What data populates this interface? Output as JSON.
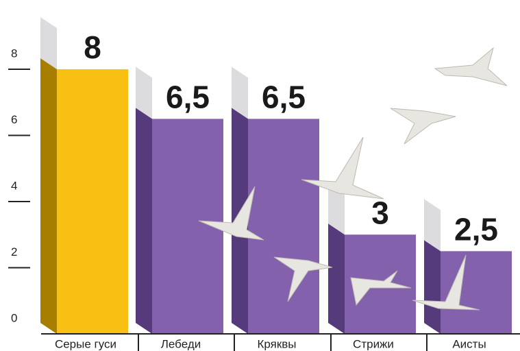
{
  "chart_data": {
    "type": "bar",
    "categories": [
      "Серые гуси",
      "Лебеди",
      "Кряквы",
      "Стрижи",
      "Аисты"
    ],
    "values": [
      8,
      6.5,
      6.5,
      3,
      2.5
    ],
    "value_labels": [
      "8",
      "6,5",
      "6,5",
      "3",
      "2,5"
    ],
    "colors": [
      "#f8c012",
      "#8461ad",
      "#8461ad",
      "#8461ad",
      "#8461ad"
    ],
    "side_colors": [
      "#a87e00",
      "#563b7c",
      "#563b7c",
      "#563b7c",
      "#563b7c"
    ],
    "ylim": [
      0,
      8
    ],
    "yticks": [
      0,
      2,
      4,
      6,
      8
    ]
  }
}
